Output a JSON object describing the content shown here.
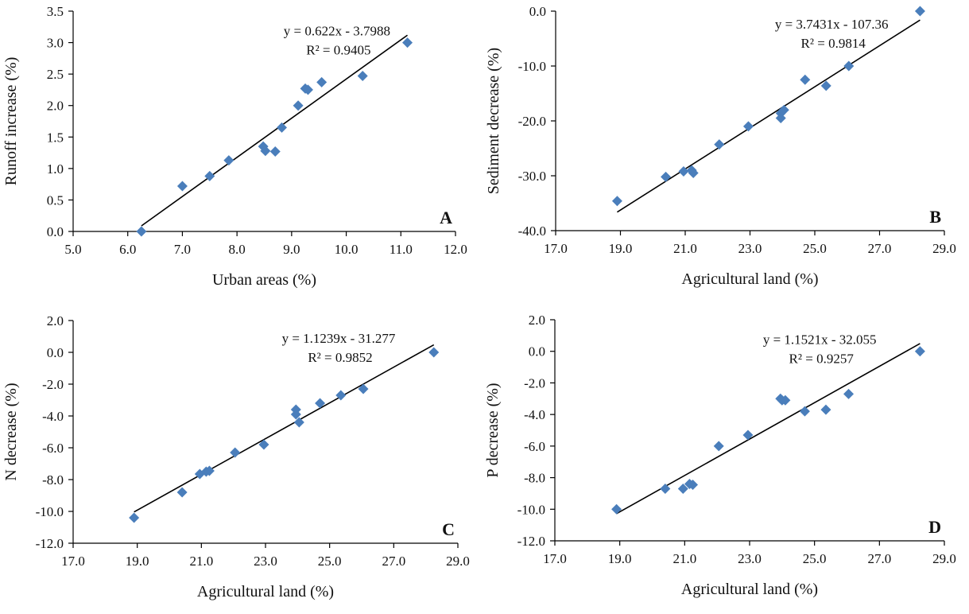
{
  "colors": {
    "marker": "#4a7ebb",
    "trendline": "#000000",
    "axis": "#000000"
  },
  "chart_data": [
    {
      "type": "scatter",
      "panel_label": "A",
      "xlabel": "Urban areas (%)",
      "ylabel": "Runoff increase  (%)",
      "xlim": [
        5.0,
        12.0
      ],
      "ylim": [
        0.0,
        3.5
      ],
      "xticks": [
        "5.0",
        "6.0",
        "7.0",
        "8.0",
        "9.0",
        "10.0",
        "11.0",
        "12.0"
      ],
      "yticks": [
        "0.0",
        "0.5",
        "1.0",
        "1.5",
        "2.0",
        "2.5",
        "3.0",
        "3.5"
      ],
      "grid": false,
      "points": [
        [
          6.25,
          0.0
        ],
        [
          7.0,
          0.72
        ],
        [
          7.5,
          0.88
        ],
        [
          7.85,
          1.13
        ],
        [
          8.48,
          1.35
        ],
        [
          8.52,
          1.28
        ],
        [
          8.7,
          1.27
        ],
        [
          8.82,
          1.65
        ],
        [
          9.12,
          2.0
        ],
        [
          9.25,
          2.27
        ],
        [
          9.3,
          2.25
        ],
        [
          9.55,
          2.37
        ],
        [
          10.3,
          2.47
        ],
        [
          11.12,
          3.0
        ]
      ],
      "trendline": {
        "slope": 0.622,
        "intercept": -3.7988,
        "x_range": [
          6.25,
          11.12
        ]
      },
      "equation": "y = 0.622x - 3.7988",
      "r2": "R² = 0.9405"
    },
    {
      "type": "scatter",
      "panel_label": "B",
      "xlabel": "Agricultural land (%)",
      "ylabel": "Sediment decrease  (%)",
      "xlim": [
        17.0,
        29.0
      ],
      "ylim": [
        -40.0,
        0.0
      ],
      "xticks": [
        "17.0",
        "19.0",
        "21.0",
        "23.0",
        "25.0",
        "27.0",
        "29.0"
      ],
      "yticks": [
        "-40.0",
        "-30.0",
        "-20.0",
        "-10.0",
        "0.0"
      ],
      "grid": false,
      "points": [
        [
          18.9,
          -34.6
        ],
        [
          20.4,
          -30.2
        ],
        [
          20.95,
          -29.2
        ],
        [
          21.2,
          -29.0
        ],
        [
          21.25,
          -29.5
        ],
        [
          22.05,
          -24.3
        ],
        [
          22.95,
          -21.0
        ],
        [
          23.95,
          -19.5
        ],
        [
          23.95,
          -18.6
        ],
        [
          24.05,
          -18.0
        ],
        [
          24.7,
          -12.5
        ],
        [
          25.35,
          -13.6
        ],
        [
          26.05,
          -10.0
        ],
        [
          28.25,
          0.0
        ]
      ],
      "trendline": {
        "slope": 3.7431,
        "intercept": -107.36,
        "x_range": [
          18.9,
          28.25
        ]
      },
      "equation": "y = 3.7431x - 107.36",
      "r2": "R² = 0.9814"
    },
    {
      "type": "scatter",
      "panel_label": "C",
      "xlabel": "Agricultural land (%)",
      "ylabel": "N  decrease  (%)",
      "xlim": [
        17.0,
        29.0
      ],
      "ylim": [
        -12.0,
        2.0
      ],
      "xticks": [
        "17.0",
        "19.0",
        "21.0",
        "23.0",
        "25.0",
        "27.0",
        "29.0"
      ],
      "yticks": [
        "-12.0",
        "-10.0",
        "-8.0",
        "-6.0",
        "-4.0",
        "-2.0",
        "0.0",
        "2.0"
      ],
      "grid": false,
      "points": [
        [
          18.9,
          -10.4
        ],
        [
          20.4,
          -8.8
        ],
        [
          20.95,
          -7.65
        ],
        [
          21.15,
          -7.5
        ],
        [
          21.25,
          -7.45
        ],
        [
          22.05,
          -6.3
        ],
        [
          22.95,
          -5.8
        ],
        [
          23.95,
          -3.9
        ],
        [
          23.95,
          -3.6
        ],
        [
          24.05,
          -4.4
        ],
        [
          24.7,
          -3.2
        ],
        [
          25.35,
          -2.7
        ],
        [
          26.05,
          -2.3
        ],
        [
          28.25,
          0.0
        ]
      ],
      "trendline": {
        "slope": 1.1239,
        "intercept": -31.277,
        "x_range": [
          18.9,
          28.25
        ]
      },
      "equation": "y = 1.1239x - 31.277",
      "r2": "R² = 0.9852"
    },
    {
      "type": "scatter",
      "panel_label": "D",
      "xlabel": "Agricultural land (%)",
      "ylabel": "P decrease  (%)",
      "xlim": [
        17.0,
        29.0
      ],
      "ylim": [
        -12.0,
        2.0
      ],
      "xticks": [
        "17.0",
        "19.0",
        "21.0",
        "23.0",
        "25.0",
        "27.0",
        "29.0"
      ],
      "yticks": [
        "-12.0",
        "-10.0",
        "-8.0",
        "-6.0",
        "-4.0",
        "-2.0",
        "0.0",
        "2.0"
      ],
      "grid": false,
      "points": [
        [
          18.9,
          -10.0
        ],
        [
          20.4,
          -8.7
        ],
        [
          20.95,
          -8.7
        ],
        [
          21.15,
          -8.4
        ],
        [
          21.25,
          -8.45
        ],
        [
          22.05,
          -6.0
        ],
        [
          22.95,
          -5.3
        ],
        [
          23.95,
          -3.0
        ],
        [
          24.0,
          -3.1
        ],
        [
          24.1,
          -3.1
        ],
        [
          24.7,
          -3.8
        ],
        [
          25.35,
          -3.7
        ],
        [
          26.05,
          -2.7
        ],
        [
          28.25,
          0.0
        ]
      ],
      "trendline": {
        "slope": 1.1521,
        "intercept": -32.055,
        "x_range": [
          18.9,
          28.25
        ]
      },
      "equation": "y = 1.1521x - 32.055",
      "r2": "R² = 0.9257"
    }
  ]
}
